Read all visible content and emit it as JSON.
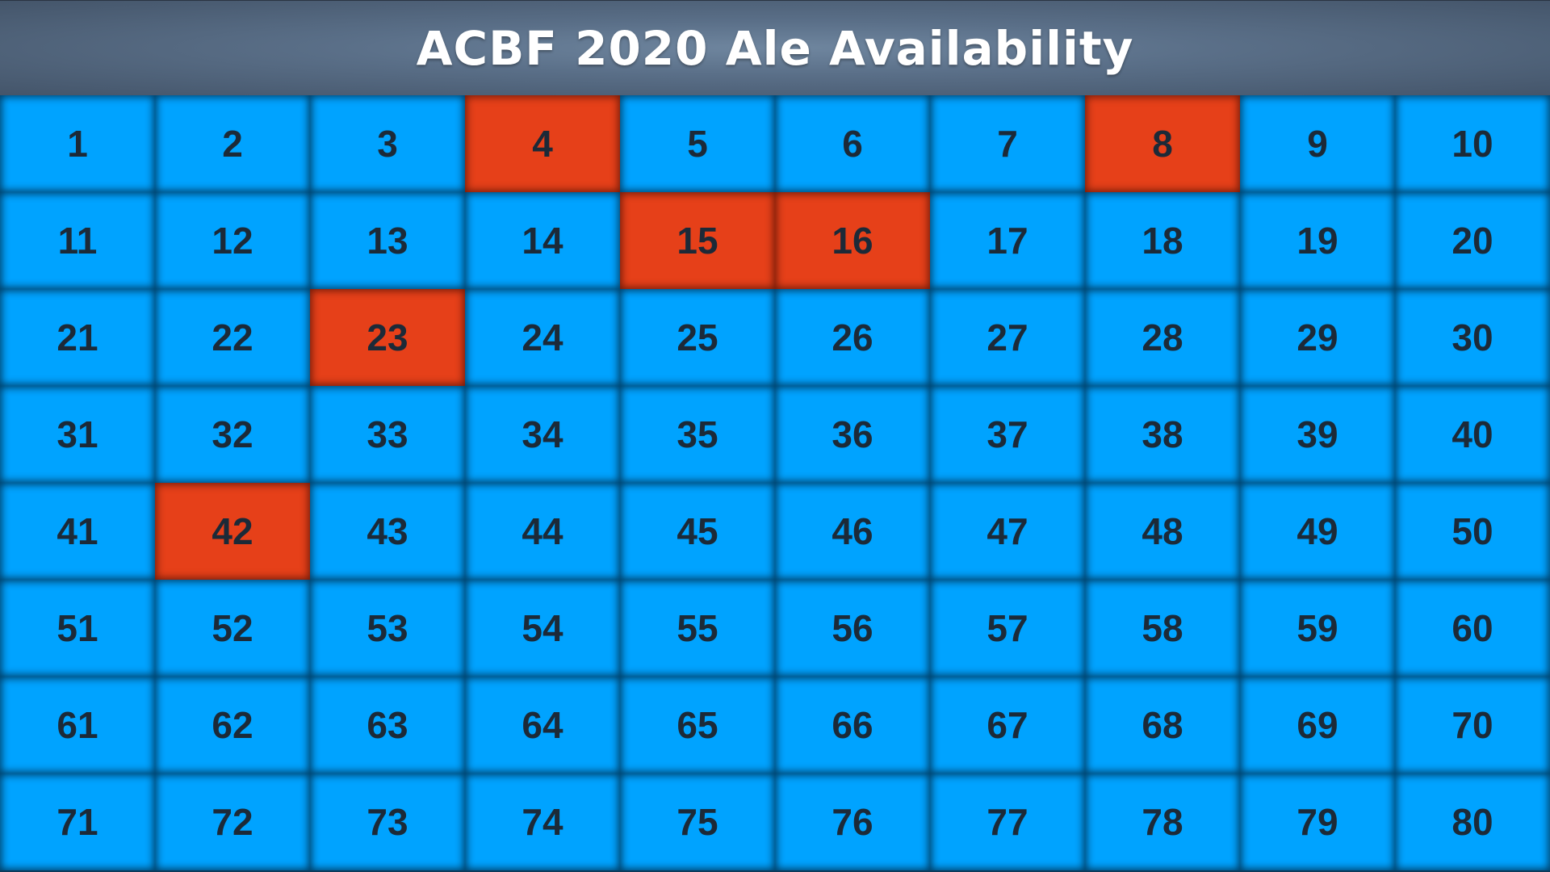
{
  "header": {
    "title": "ACBF 2020 Ale Availability"
  },
  "colors": {
    "available": "#00a3ff",
    "unavailable": "#e64019",
    "header_bg": "#5a6f88"
  },
  "grid": {
    "columns": 10,
    "ales": [
      {
        "number": "1",
        "available": true
      },
      {
        "number": "2",
        "available": true
      },
      {
        "number": "3",
        "available": true
      },
      {
        "number": "4",
        "available": false
      },
      {
        "number": "5",
        "available": true
      },
      {
        "number": "6",
        "available": true
      },
      {
        "number": "7",
        "available": true
      },
      {
        "number": "8",
        "available": false
      },
      {
        "number": "9",
        "available": true
      },
      {
        "number": "10",
        "available": true
      },
      {
        "number": "11",
        "available": true
      },
      {
        "number": "12",
        "available": true
      },
      {
        "number": "13",
        "available": true
      },
      {
        "number": "14",
        "available": true
      },
      {
        "number": "15",
        "available": false
      },
      {
        "number": "16",
        "available": false
      },
      {
        "number": "17",
        "available": true
      },
      {
        "number": "18",
        "available": true
      },
      {
        "number": "19",
        "available": true
      },
      {
        "number": "20",
        "available": true
      },
      {
        "number": "21",
        "available": true
      },
      {
        "number": "22",
        "available": true
      },
      {
        "number": "23",
        "available": false
      },
      {
        "number": "24",
        "available": true
      },
      {
        "number": "25",
        "available": true
      },
      {
        "number": "26",
        "available": true
      },
      {
        "number": "27",
        "available": true
      },
      {
        "number": "28",
        "available": true
      },
      {
        "number": "29",
        "available": true
      },
      {
        "number": "30",
        "available": true
      },
      {
        "number": "31",
        "available": true
      },
      {
        "number": "32",
        "available": true
      },
      {
        "number": "33",
        "available": true
      },
      {
        "number": "34",
        "available": true
      },
      {
        "number": "35",
        "available": true
      },
      {
        "number": "36",
        "available": true
      },
      {
        "number": "37",
        "available": true
      },
      {
        "number": "38",
        "available": true
      },
      {
        "number": "39",
        "available": true
      },
      {
        "number": "40",
        "available": true
      },
      {
        "number": "41",
        "available": true
      },
      {
        "number": "42",
        "available": false
      },
      {
        "number": "43",
        "available": true
      },
      {
        "number": "44",
        "available": true
      },
      {
        "number": "45",
        "available": true
      },
      {
        "number": "46",
        "available": true
      },
      {
        "number": "47",
        "available": true
      },
      {
        "number": "48",
        "available": true
      },
      {
        "number": "49",
        "available": true
      },
      {
        "number": "50",
        "available": true
      },
      {
        "number": "51",
        "available": true
      },
      {
        "number": "52",
        "available": true
      },
      {
        "number": "53",
        "available": true
      },
      {
        "number": "54",
        "available": true
      },
      {
        "number": "55",
        "available": true
      },
      {
        "number": "56",
        "available": true
      },
      {
        "number": "57",
        "available": true
      },
      {
        "number": "58",
        "available": true
      },
      {
        "number": "59",
        "available": true
      },
      {
        "number": "60",
        "available": true
      },
      {
        "number": "61",
        "available": true
      },
      {
        "number": "62",
        "available": true
      },
      {
        "number": "63",
        "available": true
      },
      {
        "number": "64",
        "available": true
      },
      {
        "number": "65",
        "available": true
      },
      {
        "number": "66",
        "available": true
      },
      {
        "number": "67",
        "available": true
      },
      {
        "number": "68",
        "available": true
      },
      {
        "number": "69",
        "available": true
      },
      {
        "number": "70",
        "available": true
      },
      {
        "number": "71",
        "available": true
      },
      {
        "number": "72",
        "available": true
      },
      {
        "number": "73",
        "available": true
      },
      {
        "number": "74",
        "available": true
      },
      {
        "number": "75",
        "available": true
      },
      {
        "number": "76",
        "available": true
      },
      {
        "number": "77",
        "available": true
      },
      {
        "number": "78",
        "available": true
      },
      {
        "number": "79",
        "available": true
      },
      {
        "number": "80",
        "available": true
      }
    ]
  }
}
